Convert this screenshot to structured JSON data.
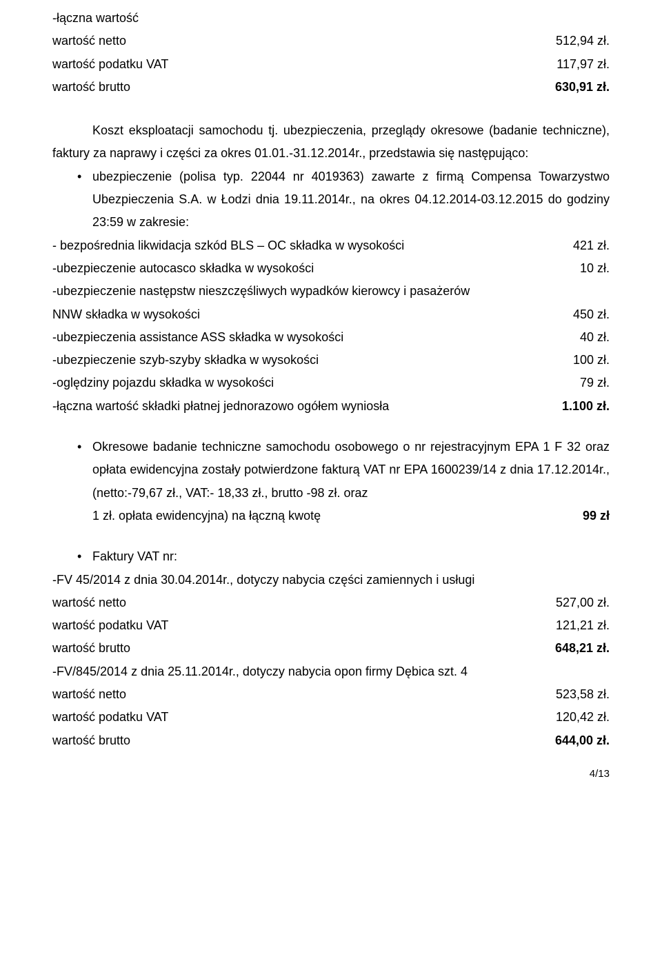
{
  "top": {
    "t1": "-łączna wartość",
    "r_net": {
      "label": "wartość netto",
      "value": "512,94 zł."
    },
    "r_vat": {
      "label": "wartość podatku VAT",
      "value": "117,97 zł."
    },
    "r_gross": {
      "label": "wartość brutto",
      "value": "630,91 zł."
    }
  },
  "p1": {
    "a": "Koszt eksploatacji samochodu tj. ubezpieczenia, przeglądy okresowe (badanie techniczne), faktury za naprawy i części za okres 01.01.-31.12.2014r., przedstawia się następująco:",
    "b1a": "ubezpieczenie (polisa typ. 22044 nr 4019363) zawarte z firmą Compensa Towarzystwo Ubezpieczenia S.A. w Łodzi dnia 19.11.2014r., na okres 04.12.2014-03.12.2015 do godziny 23:59 w zakresie:"
  },
  "ins": {
    "r1": {
      "label": "- bezpośrednia likwidacja szkód BLS – OC składka w wysokości",
      "value": "421 zł."
    },
    "r2": {
      "label": "-ubezpieczenie autocasco składka w wysokości",
      "value": "10 zł."
    },
    "r3a": "-ubezpieczenie następstw nieszczęśliwych wypadków kierowcy i pasażerów",
    "r3b": {
      "label": "NNW składka w wysokości",
      "value": "450 zł."
    },
    "r4": {
      "label": "-ubezpieczenia assistance ASS składka w wysokości",
      "value": "40 zł."
    },
    "r5": {
      "label": "-ubezpieczenie szyb-szyby składka w wysokości",
      "value": "100 zł."
    },
    "r6": {
      "label": "-oględziny pojazdu składka w wysokości",
      "value": "79 zł."
    },
    "r7": {
      "label": "-łączna wartość składki płatnej jednorazowo ogółem wyniosła",
      "value": "1.100 zł."
    }
  },
  "tech": {
    "text_a": "Okresowe badanie techniczne samochodu osobowego o nr rejestracyjnym EPA 1 F 32 oraz opłata ewidencyjna zostały potwierdzone fakturą VAT nr EPA 1600239/14 z dnia 17.12.2014r., (netto:-79,67 zł., VAT:- 18,33 zł., brutto -98 zł. oraz",
    "last": {
      "label": "1 zł. opłata ewidencyjna) na łączną kwotę",
      "value": "99 zł"
    }
  },
  "inv": {
    "title": "Faktury VAT nr:",
    "fv1": "-FV 45/2014 z dnia 30.04.2014r., dotyczy nabycia części zamiennych i usługi",
    "fv1_net": {
      "label": "wartość netto",
      "value": "527,00 zł."
    },
    "fv1_vat": {
      "label": "wartość podatku VAT",
      "value": "121,21 zł."
    },
    "fv1_gross": {
      "label": "wartość brutto",
      "value": "648,21 zł."
    },
    "fv2": "-FV/845/2014 z dnia 25.11.2014r., dotyczy nabycia opon firmy Dębica szt. 4",
    "fv2_net": {
      "label": "wartość netto",
      "value": "523,58 zł."
    },
    "fv2_vat": {
      "label": "wartość podatku VAT",
      "value": "120,42 zł."
    },
    "fv2_gross": {
      "label": "wartość brutto",
      "value": "644,00 zł."
    }
  },
  "footer": "4/13"
}
